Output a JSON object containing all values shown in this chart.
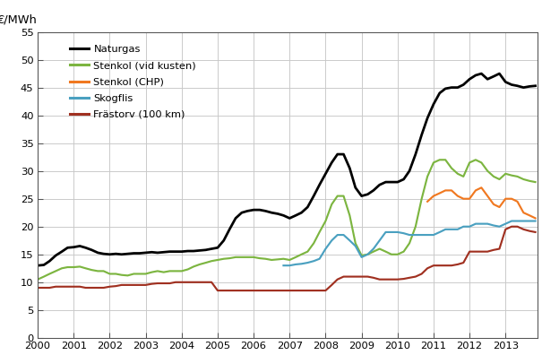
{
  "ylabel": "€/MWh",
  "ylim": [
    0,
    55
  ],
  "yticks": [
    0,
    5,
    10,
    15,
    20,
    25,
    30,
    35,
    40,
    45,
    50,
    55
  ],
  "xlim": [
    2000,
    2013.9
  ],
  "xticks": [
    2000,
    2001,
    2002,
    2003,
    2004,
    2005,
    2006,
    2007,
    2008,
    2009,
    2010,
    2011,
    2012,
    2013
  ],
  "background_color": "#ffffff",
  "grid_color": "#c8c8c8",
  "series": {
    "Naturgas": {
      "color": "#000000",
      "lw": 1.8,
      "data": [
        [
          2000.0,
          13.0
        ],
        [
          2000.17,
          13.1
        ],
        [
          2000.33,
          13.8
        ],
        [
          2000.5,
          14.8
        ],
        [
          2000.67,
          15.5
        ],
        [
          2000.83,
          16.2
        ],
        [
          2001.0,
          16.3
        ],
        [
          2001.17,
          16.5
        ],
        [
          2001.33,
          16.2
        ],
        [
          2001.5,
          15.8
        ],
        [
          2001.67,
          15.3
        ],
        [
          2001.83,
          15.1
        ],
        [
          2002.0,
          15.0
        ],
        [
          2002.17,
          15.1
        ],
        [
          2002.33,
          15.0
        ],
        [
          2002.5,
          15.1
        ],
        [
          2002.67,
          15.2
        ],
        [
          2002.83,
          15.2
        ],
        [
          2003.0,
          15.3
        ],
        [
          2003.17,
          15.4
        ],
        [
          2003.33,
          15.3
        ],
        [
          2003.5,
          15.4
        ],
        [
          2003.67,
          15.5
        ],
        [
          2003.83,
          15.5
        ],
        [
          2004.0,
          15.5
        ],
        [
          2004.17,
          15.6
        ],
        [
          2004.33,
          15.6
        ],
        [
          2004.5,
          15.7
        ],
        [
          2004.67,
          15.8
        ],
        [
          2004.83,
          16.0
        ],
        [
          2005.0,
          16.2
        ],
        [
          2005.17,
          17.5
        ],
        [
          2005.33,
          19.5
        ],
        [
          2005.5,
          21.5
        ],
        [
          2005.67,
          22.5
        ],
        [
          2005.83,
          22.8
        ],
        [
          2006.0,
          23.0
        ],
        [
          2006.17,
          23.0
        ],
        [
          2006.33,
          22.8
        ],
        [
          2006.5,
          22.5
        ],
        [
          2006.67,
          22.3
        ],
        [
          2006.83,
          22.0
        ],
        [
          2007.0,
          21.5
        ],
        [
          2007.17,
          22.0
        ],
        [
          2007.33,
          22.5
        ],
        [
          2007.5,
          23.5
        ],
        [
          2007.67,
          25.5
        ],
        [
          2007.83,
          27.5
        ],
        [
          2008.0,
          29.5
        ],
        [
          2008.17,
          31.5
        ],
        [
          2008.33,
          33.0
        ],
        [
          2008.5,
          33.0
        ],
        [
          2008.67,
          30.5
        ],
        [
          2008.83,
          27.0
        ],
        [
          2009.0,
          25.5
        ],
        [
          2009.17,
          25.8
        ],
        [
          2009.33,
          26.5
        ],
        [
          2009.5,
          27.5
        ],
        [
          2009.67,
          28.0
        ],
        [
          2009.83,
          28.0
        ],
        [
          2010.0,
          28.0
        ],
        [
          2010.17,
          28.5
        ],
        [
          2010.33,
          30.0
        ],
        [
          2010.5,
          33.0
        ],
        [
          2010.67,
          36.5
        ],
        [
          2010.83,
          39.5
        ],
        [
          2011.0,
          42.0
        ],
        [
          2011.17,
          44.0
        ],
        [
          2011.33,
          44.8
        ],
        [
          2011.5,
          45.0
        ],
        [
          2011.67,
          45.0
        ],
        [
          2011.83,
          45.5
        ],
        [
          2012.0,
          46.5
        ],
        [
          2012.17,
          47.2
        ],
        [
          2012.33,
          47.5
        ],
        [
          2012.5,
          46.5
        ],
        [
          2012.67,
          47.0
        ],
        [
          2012.83,
          47.5
        ],
        [
          2013.0,
          46.0
        ],
        [
          2013.17,
          45.5
        ],
        [
          2013.33,
          45.3
        ],
        [
          2013.5,
          45.0
        ],
        [
          2013.67,
          45.2
        ],
        [
          2013.83,
          45.3
        ]
      ]
    },
    "Stenkol (vid kusten)": {
      "color": "#7cb540",
      "lw": 1.4,
      "data": [
        [
          2000.0,
          10.5
        ],
        [
          2000.17,
          11.0
        ],
        [
          2000.33,
          11.5
        ],
        [
          2000.5,
          12.0
        ],
        [
          2000.67,
          12.5
        ],
        [
          2000.83,
          12.7
        ],
        [
          2001.0,
          12.7
        ],
        [
          2001.17,
          12.8
        ],
        [
          2001.33,
          12.5
        ],
        [
          2001.5,
          12.2
        ],
        [
          2001.67,
          12.0
        ],
        [
          2001.83,
          12.0
        ],
        [
          2002.0,
          11.5
        ],
        [
          2002.17,
          11.5
        ],
        [
          2002.33,
          11.3
        ],
        [
          2002.5,
          11.2
        ],
        [
          2002.67,
          11.5
        ],
        [
          2002.83,
          11.5
        ],
        [
          2003.0,
          11.5
        ],
        [
          2003.17,
          11.8
        ],
        [
          2003.33,
          12.0
        ],
        [
          2003.5,
          11.8
        ],
        [
          2003.67,
          12.0
        ],
        [
          2003.83,
          12.0
        ],
        [
          2004.0,
          12.0
        ],
        [
          2004.17,
          12.3
        ],
        [
          2004.33,
          12.8
        ],
        [
          2004.5,
          13.2
        ],
        [
          2004.67,
          13.5
        ],
        [
          2004.83,
          13.8
        ],
        [
          2005.0,
          14.0
        ],
        [
          2005.17,
          14.2
        ],
        [
          2005.33,
          14.3
        ],
        [
          2005.5,
          14.5
        ],
        [
          2005.67,
          14.5
        ],
        [
          2005.83,
          14.5
        ],
        [
          2006.0,
          14.5
        ],
        [
          2006.17,
          14.3
        ],
        [
          2006.33,
          14.2
        ],
        [
          2006.5,
          14.0
        ],
        [
          2006.67,
          14.1
        ],
        [
          2006.83,
          14.2
        ],
        [
          2007.0,
          14.0
        ],
        [
          2007.17,
          14.5
        ],
        [
          2007.33,
          15.0
        ],
        [
          2007.5,
          15.5
        ],
        [
          2007.67,
          17.0
        ],
        [
          2007.83,
          19.0
        ],
        [
          2008.0,
          21.0
        ],
        [
          2008.17,
          24.0
        ],
        [
          2008.33,
          25.5
        ],
        [
          2008.5,
          25.5
        ],
        [
          2008.67,
          22.0
        ],
        [
          2008.83,
          17.0
        ],
        [
          2009.0,
          14.8
        ],
        [
          2009.17,
          15.0
        ],
        [
          2009.33,
          15.5
        ],
        [
          2009.5,
          16.0
        ],
        [
          2009.67,
          15.5
        ],
        [
          2009.83,
          15.0
        ],
        [
          2010.0,
          15.0
        ],
        [
          2010.17,
          15.5
        ],
        [
          2010.33,
          17.0
        ],
        [
          2010.5,
          20.0
        ],
        [
          2010.67,
          25.0
        ],
        [
          2010.83,
          29.0
        ],
        [
          2011.0,
          31.5
        ],
        [
          2011.17,
          32.0
        ],
        [
          2011.33,
          32.0
        ],
        [
          2011.5,
          30.5
        ],
        [
          2011.67,
          29.5
        ],
        [
          2011.83,
          29.0
        ],
        [
          2012.0,
          31.5
        ],
        [
          2012.17,
          32.0
        ],
        [
          2012.33,
          31.5
        ],
        [
          2012.5,
          30.0
        ],
        [
          2012.67,
          29.0
        ],
        [
          2012.83,
          28.5
        ],
        [
          2013.0,
          29.5
        ],
        [
          2013.17,
          29.2
        ],
        [
          2013.33,
          29.0
        ],
        [
          2013.5,
          28.5
        ],
        [
          2013.67,
          28.2
        ],
        [
          2013.83,
          28.0
        ]
      ]
    },
    "Stenkol (CHP)": {
      "color": "#f07820",
      "lw": 1.4,
      "data": [
        [
          2010.83,
          24.5
        ],
        [
          2011.0,
          25.5
        ],
        [
          2011.17,
          26.0
        ],
        [
          2011.33,
          26.5
        ],
        [
          2011.5,
          26.5
        ],
        [
          2011.67,
          25.5
        ],
        [
          2011.83,
          25.0
        ],
        [
          2012.0,
          25.0
        ],
        [
          2012.17,
          26.5
        ],
        [
          2012.33,
          27.0
        ],
        [
          2012.5,
          25.5
        ],
        [
          2012.67,
          24.0
        ],
        [
          2012.83,
          23.5
        ],
        [
          2013.0,
          25.0
        ],
        [
          2013.17,
          25.0
        ],
        [
          2013.33,
          24.5
        ],
        [
          2013.5,
          22.5
        ],
        [
          2013.67,
          22.0
        ],
        [
          2013.83,
          21.5
        ]
      ]
    },
    "Skogflis": {
      "color": "#4aa0c0",
      "lw": 1.4,
      "data": [
        [
          2006.83,
          13.0
        ],
        [
          2007.0,
          13.0
        ],
        [
          2007.17,
          13.2
        ],
        [
          2007.33,
          13.3
        ],
        [
          2007.5,
          13.5
        ],
        [
          2007.67,
          13.8
        ],
        [
          2007.83,
          14.2
        ],
        [
          2008.0,
          16.0
        ],
        [
          2008.17,
          17.5
        ],
        [
          2008.33,
          18.5
        ],
        [
          2008.5,
          18.5
        ],
        [
          2008.67,
          17.5
        ],
        [
          2008.83,
          16.5
        ],
        [
          2009.0,
          14.5
        ],
        [
          2009.17,
          15.0
        ],
        [
          2009.33,
          16.0
        ],
        [
          2009.5,
          17.5
        ],
        [
          2009.67,
          19.0
        ],
        [
          2009.83,
          19.0
        ],
        [
          2010.0,
          19.0
        ],
        [
          2010.17,
          18.8
        ],
        [
          2010.33,
          18.5
        ],
        [
          2010.5,
          18.5
        ],
        [
          2010.67,
          18.5
        ],
        [
          2010.83,
          18.5
        ],
        [
          2011.0,
          18.5
        ],
        [
          2011.17,
          19.0
        ],
        [
          2011.33,
          19.5
        ],
        [
          2011.5,
          19.5
        ],
        [
          2011.67,
          19.5
        ],
        [
          2011.83,
          20.0
        ],
        [
          2012.0,
          20.0
        ],
        [
          2012.17,
          20.5
        ],
        [
          2012.33,
          20.5
        ],
        [
          2012.5,
          20.5
        ],
        [
          2012.67,
          20.2
        ],
        [
          2012.83,
          20.0
        ],
        [
          2013.0,
          20.5
        ],
        [
          2013.17,
          21.0
        ],
        [
          2013.33,
          21.0
        ],
        [
          2013.5,
          21.0
        ],
        [
          2013.67,
          21.0
        ],
        [
          2013.83,
          21.0
        ]
      ]
    },
    "Frästorv (100 km)": {
      "color": "#a03020",
      "lw": 1.4,
      "data": [
        [
          2000.0,
          9.0
        ],
        [
          2000.17,
          9.0
        ],
        [
          2000.33,
          9.0
        ],
        [
          2000.5,
          9.2
        ],
        [
          2000.67,
          9.2
        ],
        [
          2000.83,
          9.2
        ],
        [
          2001.0,
          9.2
        ],
        [
          2001.17,
          9.2
        ],
        [
          2001.33,
          9.0
        ],
        [
          2001.5,
          9.0
        ],
        [
          2001.67,
          9.0
        ],
        [
          2001.83,
          9.0
        ],
        [
          2002.0,
          9.2
        ],
        [
          2002.17,
          9.3
        ],
        [
          2002.33,
          9.5
        ],
        [
          2002.5,
          9.5
        ],
        [
          2002.67,
          9.5
        ],
        [
          2002.83,
          9.5
        ],
        [
          2003.0,
          9.5
        ],
        [
          2003.17,
          9.7
        ],
        [
          2003.33,
          9.8
        ],
        [
          2003.5,
          9.8
        ],
        [
          2003.67,
          9.8
        ],
        [
          2003.83,
          10.0
        ],
        [
          2004.0,
          10.0
        ],
        [
          2004.17,
          10.0
        ],
        [
          2004.33,
          10.0
        ],
        [
          2004.5,
          10.0
        ],
        [
          2004.67,
          10.0
        ],
        [
          2004.83,
          10.0
        ],
        [
          2005.0,
          8.5
        ],
        [
          2005.17,
          8.5
        ],
        [
          2005.33,
          8.5
        ],
        [
          2005.5,
          8.5
        ],
        [
          2005.67,
          8.5
        ],
        [
          2005.83,
          8.5
        ],
        [
          2006.0,
          8.5
        ],
        [
          2006.17,
          8.5
        ],
        [
          2006.33,
          8.5
        ],
        [
          2006.5,
          8.5
        ],
        [
          2006.67,
          8.5
        ],
        [
          2006.83,
          8.5
        ],
        [
          2007.0,
          8.5
        ],
        [
          2007.17,
          8.5
        ],
        [
          2007.33,
          8.5
        ],
        [
          2007.5,
          8.5
        ],
        [
          2007.67,
          8.5
        ],
        [
          2007.83,
          8.5
        ],
        [
          2008.0,
          8.5
        ],
        [
          2008.17,
          9.5
        ],
        [
          2008.33,
          10.5
        ],
        [
          2008.5,
          11.0
        ],
        [
          2008.67,
          11.0
        ],
        [
          2008.83,
          11.0
        ],
        [
          2009.0,
          11.0
        ],
        [
          2009.17,
          11.0
        ],
        [
          2009.33,
          10.8
        ],
        [
          2009.5,
          10.5
        ],
        [
          2009.67,
          10.5
        ],
        [
          2009.83,
          10.5
        ],
        [
          2010.0,
          10.5
        ],
        [
          2010.17,
          10.6
        ],
        [
          2010.33,
          10.8
        ],
        [
          2010.5,
          11.0
        ],
        [
          2010.67,
          11.5
        ],
        [
          2010.83,
          12.5
        ],
        [
          2011.0,
          13.0
        ],
        [
          2011.17,
          13.0
        ],
        [
          2011.33,
          13.0
        ],
        [
          2011.5,
          13.0
        ],
        [
          2011.67,
          13.2
        ],
        [
          2011.83,
          13.5
        ],
        [
          2012.0,
          15.5
        ],
        [
          2012.17,
          15.5
        ],
        [
          2012.33,
          15.5
        ],
        [
          2012.5,
          15.5
        ],
        [
          2012.67,
          15.8
        ],
        [
          2012.83,
          16.0
        ],
        [
          2013.0,
          19.5
        ],
        [
          2013.17,
          20.0
        ],
        [
          2013.33,
          20.0
        ],
        [
          2013.5,
          19.5
        ],
        [
          2013.67,
          19.2
        ],
        [
          2013.83,
          19.0
        ]
      ]
    }
  },
  "legend_items": [
    {
      "label": "Naturgas",
      "color": "#000000"
    },
    {
      "label": "Stenkol (vid kusten)",
      "color": "#7cb540"
    },
    {
      "label": "Stenkol (CHP)",
      "color": "#f07820"
    },
    {
      "label": "Skogflis",
      "color": "#4aa0c0"
    },
    {
      "label": "Frästorv (100 km)",
      "color": "#a03020"
    }
  ]
}
